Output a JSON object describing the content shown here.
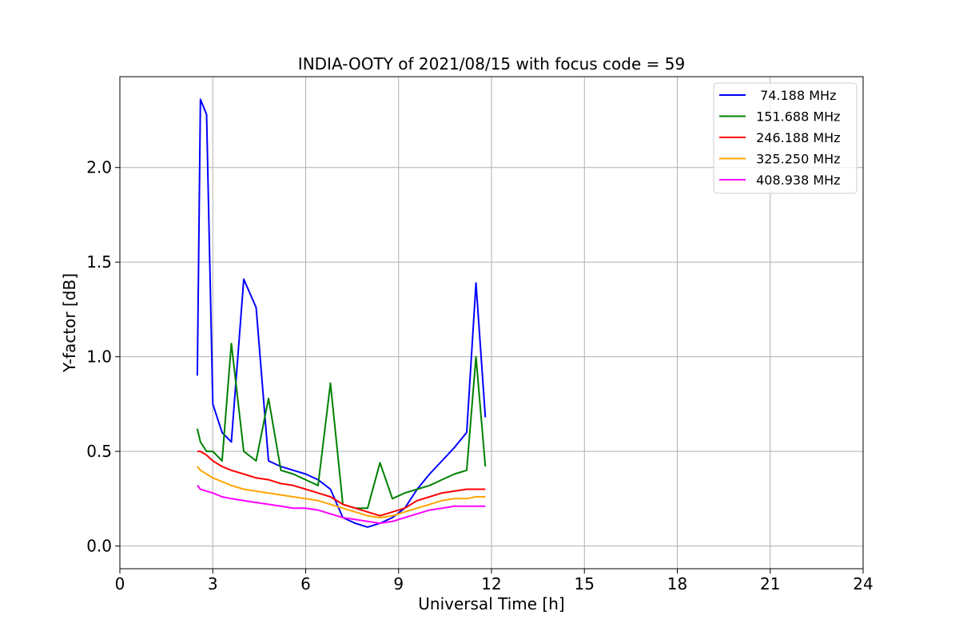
{
  "chart_data": {
    "type": "line",
    "title": "INDIA-OOTY of 2021/08/15 with focus code = 59",
    "xlabel": "Universal Time [h]",
    "ylabel": "Y-factor [dB]",
    "xlim": [
      0,
      24
    ],
    "ylim": [
      -0.12,
      2.48
    ],
    "xticks": [
      0,
      3,
      6,
      9,
      12,
      15,
      18,
      21,
      24
    ],
    "xtick_labels": [
      "0",
      "3",
      "6",
      "9",
      "12",
      "15",
      "18",
      "21",
      "24"
    ],
    "yticks": [
      0.0,
      0.5,
      1.0,
      1.5,
      2.0
    ],
    "ytick_labels": [
      "0.0",
      "0.5",
      "1.0",
      "1.5",
      "2.0"
    ],
    "grid": true,
    "legend_position": "top-right",
    "x": [
      2.5,
      2.6,
      2.8,
      3.0,
      3.3,
      3.6,
      4.0,
      4.4,
      4.8,
      5.2,
      5.6,
      6.0,
      6.4,
      6.8,
      7.2,
      7.6,
      8.0,
      8.4,
      8.8,
      9.2,
      9.6,
      10.0,
      10.4,
      10.8,
      11.2,
      11.5,
      11.8
    ],
    "series": [
      {
        "name": "74.188 MHz",
        "label": "  74.188 MHz",
        "color": "#0000ff",
        "values": [
          0.9,
          2.36,
          2.28,
          0.75,
          0.6,
          0.55,
          1.41,
          1.26,
          0.45,
          0.42,
          0.4,
          0.38,
          0.35,
          0.3,
          0.15,
          0.12,
          0.1,
          0.12,
          0.15,
          0.2,
          0.3,
          0.38,
          0.45,
          0.52,
          0.6,
          1.39,
          0.68
        ]
      },
      {
        "name": "151.688 MHz",
        "label": " 151.688 MHz",
        "color": "#008000",
        "values": [
          0.62,
          0.55,
          0.5,
          0.5,
          0.45,
          1.07,
          0.5,
          0.45,
          0.78,
          0.4,
          0.38,
          0.35,
          0.32,
          0.86,
          0.22,
          0.2,
          0.2,
          0.44,
          0.25,
          0.28,
          0.3,
          0.32,
          0.35,
          0.38,
          0.4,
          1.0,
          0.42
        ]
      },
      {
        "name": "246.188 MHz",
        "label": " 246.188 MHz",
        "color": "#ff0000",
        "values": [
          0.5,
          0.5,
          0.48,
          0.45,
          0.42,
          0.4,
          0.38,
          0.36,
          0.35,
          0.33,
          0.32,
          0.3,
          0.28,
          0.26,
          0.22,
          0.2,
          0.18,
          0.16,
          0.18,
          0.2,
          0.24,
          0.26,
          0.28,
          0.29,
          0.3,
          0.3,
          0.3
        ]
      },
      {
        "name": "325.250 MHz",
        "label": " 325.250 MHz",
        "color": "#ffa500",
        "values": [
          0.42,
          0.4,
          0.38,
          0.36,
          0.34,
          0.32,
          0.3,
          0.29,
          0.28,
          0.27,
          0.26,
          0.25,
          0.24,
          0.22,
          0.2,
          0.18,
          0.16,
          0.15,
          0.16,
          0.18,
          0.2,
          0.22,
          0.24,
          0.25,
          0.25,
          0.26,
          0.26
        ]
      },
      {
        "name": "408.938 MHz",
        "label": " 408.938 MHz",
        "color": "#ff00ff",
        "values": [
          0.32,
          0.3,
          0.29,
          0.28,
          0.26,
          0.25,
          0.24,
          0.23,
          0.22,
          0.21,
          0.2,
          0.2,
          0.19,
          0.17,
          0.15,
          0.14,
          0.13,
          0.12,
          0.13,
          0.15,
          0.17,
          0.19,
          0.2,
          0.21,
          0.21,
          0.21,
          0.21
        ]
      }
    ]
  }
}
